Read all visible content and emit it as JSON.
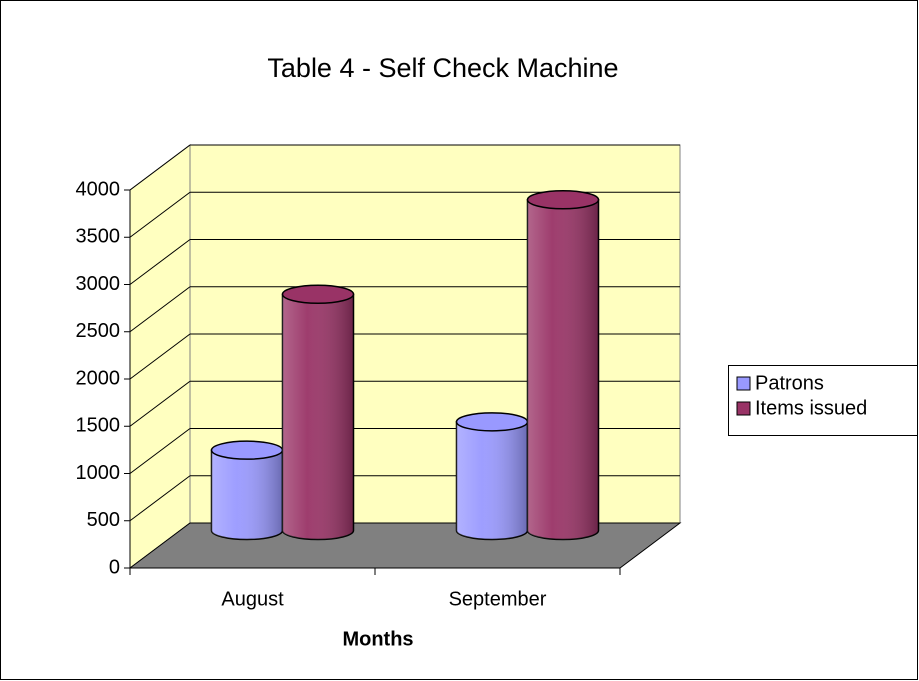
{
  "chart_data": {
    "type": "bar3d",
    "title": "Table 4 - Self Check Machine",
    "categories": [
      "August",
      "September"
    ],
    "series": [
      {
        "name": "Patrons",
        "color": "#9999ff",
        "values": [
          850,
          1150
        ]
      },
      {
        "name": "Items issued",
        "color": "#993366",
        "values": [
          2500,
          3500
        ]
      }
    ],
    "xlabel": "Months",
    "ylim": [
      0,
      4000
    ],
    "yticks": [
      0,
      500,
      1000,
      1500,
      2000,
      2500,
      3000,
      3500,
      4000
    ],
    "grid": true,
    "legend": "right"
  }
}
